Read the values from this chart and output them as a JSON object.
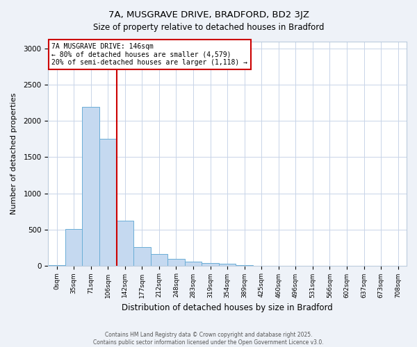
{
  "title_line1": "7A, MUSGRAVE DRIVE, BRADFORD, BD2 3JZ",
  "title_line2": "Size of property relative to detached houses in Bradford",
  "xlabel": "Distribution of detached houses by size in Bradford",
  "ylabel": "Number of detached properties",
  "categories": [
    "0sqm",
    "35sqm",
    "71sqm",
    "106sqm",
    "142sqm",
    "177sqm",
    "212sqm",
    "248sqm",
    "283sqm",
    "319sqm",
    "354sqm",
    "389sqm",
    "425sqm",
    "460sqm",
    "496sqm",
    "531sqm",
    "566sqm",
    "602sqm",
    "637sqm",
    "673sqm",
    "708sqm"
  ],
  "bar_values": [
    5,
    510,
    2200,
    1750,
    620,
    260,
    155,
    95,
    55,
    30,
    20,
    5,
    0,
    0,
    0,
    0,
    0,
    0,
    0,
    0,
    0
  ],
  "bar_color": "#c5d9f0",
  "bar_edge_color": "#6baed6",
  "vline_color": "#cc0000",
  "annotation_title": "7A MUSGRAVE DRIVE: 146sqm",
  "annotation_line1": "← 80% of detached houses are smaller (4,579)",
  "annotation_line2": "20% of semi-detached houses are larger (1,118) →",
  "annotation_box_color": "#cc0000",
  "ylim": [
    0,
    3100
  ],
  "yticks": [
    0,
    500,
    1000,
    1500,
    2000,
    2500,
    3000
  ],
  "footer_line1": "Contains HM Land Registry data © Crown copyright and database right 2025.",
  "footer_line2": "Contains public sector information licensed under the Open Government Licence v3.0.",
  "bg_color": "#eef2f8",
  "plot_bg_color": "#ffffff",
  "grid_color": "#c8d4e8"
}
